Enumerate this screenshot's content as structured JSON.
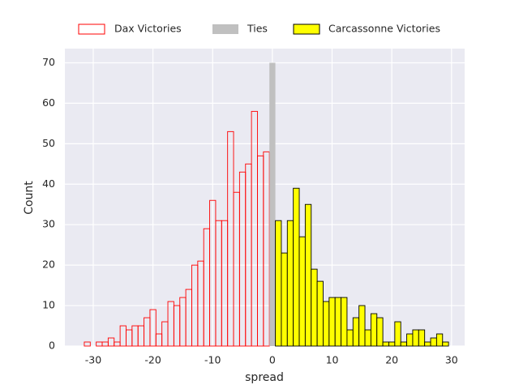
{
  "chart_data": {
    "type": "histogram",
    "xlabel": "spread",
    "ylabel": "Count",
    "xlim": [
      -34.75,
      32.2
    ],
    "ylim": [
      0,
      73.5
    ],
    "xticks": [
      -30,
      -20,
      -10,
      0,
      10,
      20,
      30
    ],
    "yticks": [
      0,
      10,
      20,
      30,
      40,
      50,
      60,
      70
    ],
    "grid": true,
    "legend": "top",
    "series": [
      {
        "name": "Dax Victories",
        "color": "none",
        "edgecolor": "#ff0000",
        "bins": [
          -31.5,
          -30.5,
          -29.5,
          -28.5,
          -27.5,
          -26.5,
          -25.5,
          -24.5,
          -23.5,
          -22.5,
          -21.5,
          -20.5,
          -19.5,
          -18.5,
          -17.5,
          -16.5,
          -15.5,
          -14.5,
          -13.5,
          -12.5,
          -11.5,
          -10.5,
          -9.5,
          -8.5,
          -7.5,
          -6.5,
          -5.5,
          -4.5,
          -3.5,
          -2.5,
          -1.5,
          -0.5
        ],
        "values": [
          1,
          0,
          1,
          1,
          2,
          1,
          5,
          4,
          5,
          5,
          7,
          9,
          3,
          6,
          11,
          10,
          12,
          14,
          20,
          21,
          29,
          36,
          31,
          31,
          53,
          38,
          43,
          45,
          58,
          47,
          48
        ]
      },
      {
        "name": "Ties",
        "color": "#c0c0c0",
        "edgecolor": "none",
        "bins": [
          -0.5,
          0.5
        ],
        "values": [
          70
        ]
      },
      {
        "name": "Carcassonne Victories",
        "color": "#ffff00",
        "edgecolor": "#000000",
        "bins": [
          0.5,
          1.5,
          2.5,
          3.5,
          4.5,
          5.5,
          6.5,
          7.5,
          8.5,
          9.5,
          10.5,
          11.5,
          12.5,
          13.5,
          14.5,
          15.5,
          16.5,
          17.5,
          18.5,
          19.5,
          20.5,
          21.5,
          22.5,
          23.5,
          24.5,
          25.5,
          26.5,
          27.5,
          28.5,
          29.5
        ],
        "values": [
          31,
          23,
          31,
          39,
          27,
          35,
          19,
          16,
          11,
          12,
          12,
          12,
          4,
          7,
          10,
          4,
          8,
          7,
          1,
          1,
          6,
          1,
          3,
          4,
          4,
          1,
          2,
          3,
          1
        ]
      }
    ]
  }
}
